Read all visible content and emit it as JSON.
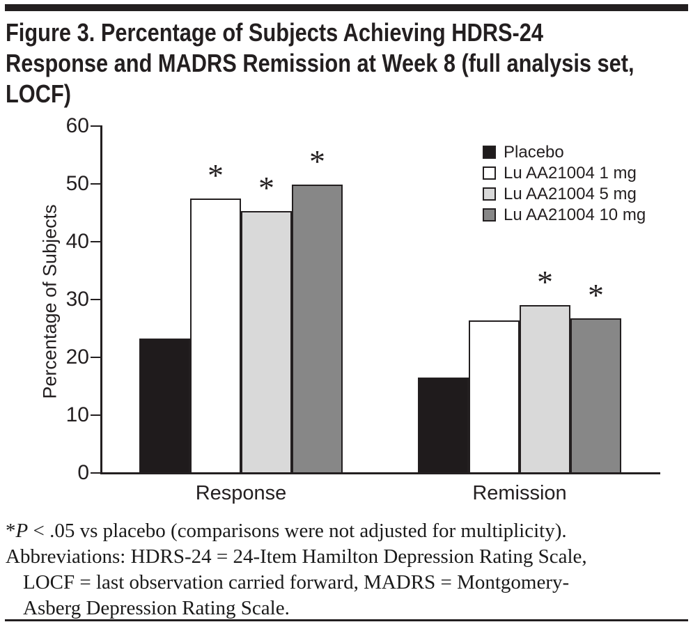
{
  "title": {
    "lines": [
      "Figure 3. Percentage of Subjects Achieving HDRS-24",
      "Response and MADRS Remission at Week 8 (full analysis set,",
      "LOCF)"
    ]
  },
  "chart_data": {
    "type": "bar",
    "title": "Percentage of Subjects Achieving HDRS-24 Response and MADRS Remission at Week 8 (full analysis set, LOCF)",
    "xlabel": "",
    "ylabel": "Percentage of Subjects",
    "ylim": [
      0,
      60
    ],
    "yticks": [
      0,
      10,
      20,
      30,
      40,
      50,
      60
    ],
    "grid": false,
    "legend_position": "upper right",
    "categories": [
      "Response",
      "Remission"
    ],
    "series": [
      {
        "name": "Placebo",
        "color": "#1f1b1c",
        "values": [
          23.2,
          16.5
        ],
        "significant": [
          false,
          false
        ]
      },
      {
        "name": "Lu AA21004 1 mg",
        "color": "#ffffff",
        "values": [
          47.5,
          26.4
        ],
        "significant": [
          true,
          false
        ]
      },
      {
        "name": "Lu AA21004 5 mg",
        "color": "#d9d9d9",
        "values": [
          45.3,
          29.0
        ],
        "significant": [
          true,
          true
        ]
      },
      {
        "name": "Lu AA21004 10 mg",
        "color": "#878787",
        "values": [
          49.9,
          26.8
        ],
        "significant": [
          true,
          true
        ]
      }
    ],
    "significance_marker": "*"
  },
  "footnote": {
    "line1_star": "*",
    "line1_p": "P",
    "line1_rest": " < .05 vs placebo (comparisons were not adjusted for multiplicity).",
    "line2": "Abbreviations: HDRS-24 = 24-Item Hamilton Depression Rating Scale,",
    "line3": "LOCF = last observation carried forward, MADRS = Montgomery-",
    "line4": "Asberg Depression Rating Scale."
  }
}
